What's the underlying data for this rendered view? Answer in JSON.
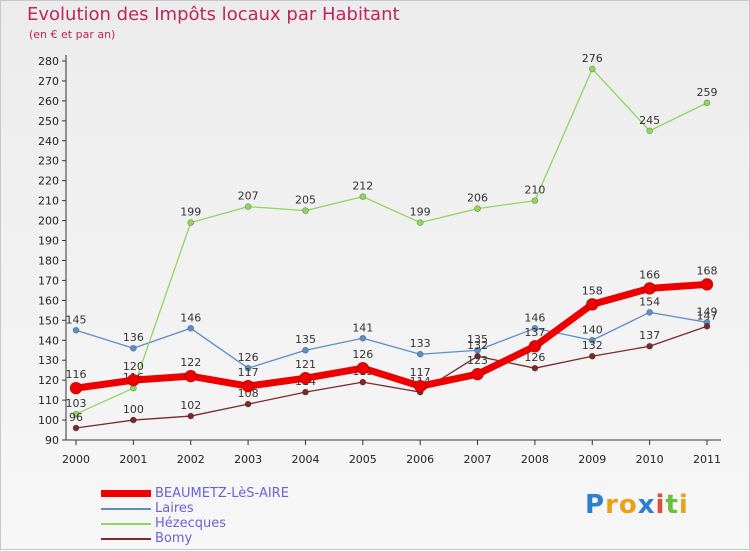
{
  "header": {
    "title": "Evolution des Impôts locaux par Habitant",
    "subtitle": "(en € et par an)"
  },
  "logo": {
    "letters": [
      {
        "ch": "P",
        "color": "#2f7fd1"
      },
      {
        "ch": "r",
        "color": "#e8a21a"
      },
      {
        "ch": "o",
        "color": "#e8a21a"
      },
      {
        "ch": "x",
        "color": "#2f7fd1"
      },
      {
        "ch": "i",
        "color": "#e24b3a"
      },
      {
        "ch": "t",
        "color": "#6bbf3a"
      },
      {
        "ch": "i",
        "color": "#e8a21a"
      }
    ]
  },
  "chart_data": {
    "type": "line",
    "title": "Evolution des Impôts locaux par Habitant",
    "subtitle": "(en € et par an)",
    "categories": [
      "2000",
      "2001",
      "2002",
      "2003",
      "2004",
      "2005",
      "2006",
      "2007",
      "2008",
      "2009",
      "2010",
      "2011"
    ],
    "ylim": [
      90,
      280
    ],
    "ytick_step": 10,
    "grid": false,
    "legend_position": "bottom-left",
    "series": [
      {
        "name": "BEAUMETZ-LèS-AIRE",
        "color": "#ee0000",
        "width": 7,
        "marker": 6,
        "values": [
          116,
          120,
          122,
          117,
          121,
          126,
          117,
          123,
          137,
          158,
          166,
          168
        ]
      },
      {
        "name": "Laires",
        "color": "#5b8fc7",
        "width": 1.3,
        "marker": 3,
        "values": [
          145,
          136,
          146,
          126,
          135,
          141,
          133,
          135,
          146,
          140,
          154,
          149
        ]
      },
      {
        "name": "Hézecques",
        "color": "#8fd65e",
        "width": 1.3,
        "marker": 3,
        "values": [
          103,
          116,
          199,
          207,
          205,
          212,
          199,
          206,
          210,
          276,
          245,
          259
        ]
      },
      {
        "name": "Bomy",
        "color": "#7a2a2a",
        "width": 1.3,
        "marker": 3,
        "values": [
          96,
          100,
          102,
          108,
          114,
          119,
          114,
          132,
          126,
          132,
          137,
          147
        ]
      }
    ]
  }
}
